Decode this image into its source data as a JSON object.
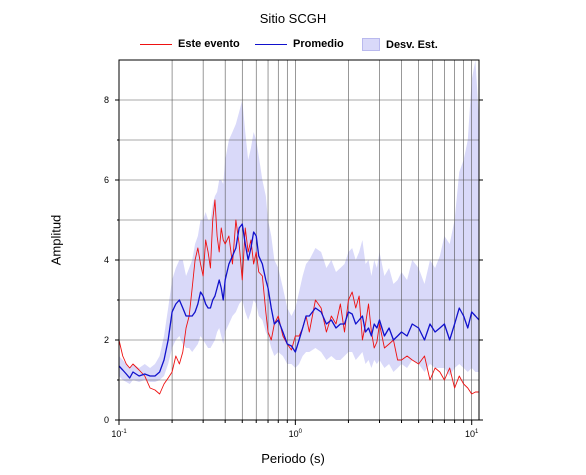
{
  "chart_data": {
    "type": "line",
    "title": "Sitio SCGH",
    "xlabel": "Periodo (s)",
    "ylabel": "Amplitud",
    "x_scale": "log",
    "xlim": [
      0.1,
      11
    ],
    "ylim": [
      0,
      9
    ],
    "grid": true,
    "legend_position": "top",
    "x_ticks": [
      {
        "value": 0.1,
        "base": "10",
        "exp": "-1"
      },
      {
        "value": 1,
        "base": "10",
        "exp": "0"
      },
      {
        "value": 10,
        "base": "10",
        "exp": "1"
      }
    ],
    "y_ticks": [
      0,
      2,
      4,
      6,
      8
    ],
    "series": [
      {
        "name": "Este evento",
        "color": "#ee1111",
        "x": [
          0.1,
          0.105,
          0.11,
          0.115,
          0.12,
          0.13,
          0.14,
          0.15,
          0.16,
          0.17,
          0.18,
          0.19,
          0.2,
          0.21,
          0.22,
          0.23,
          0.24,
          0.25,
          0.26,
          0.27,
          0.28,
          0.29,
          0.3,
          0.31,
          0.32,
          0.33,
          0.34,
          0.35,
          0.36,
          0.37,
          0.38,
          0.39,
          0.4,
          0.42,
          0.44,
          0.46,
          0.48,
          0.5,
          0.52,
          0.54,
          0.56,
          0.58,
          0.6,
          0.62,
          0.65,
          0.68,
          0.7,
          0.73,
          0.76,
          0.8,
          0.85,
          0.9,
          0.95,
          1.0,
          1.05,
          1.1,
          1.15,
          1.2,
          1.3,
          1.4,
          1.5,
          1.6,
          1.7,
          1.8,
          1.9,
          2.0,
          2.1,
          2.2,
          2.3,
          2.4,
          2.5,
          2.6,
          2.7,
          2.8,
          2.9,
          3.0,
          3.2,
          3.4,
          3.6,
          3.8,
          4.0,
          4.3,
          4.6,
          5.0,
          5.4,
          5.8,
          6.2,
          6.6,
          7.0,
          7.5,
          8.0,
          8.5,
          9.0,
          9.5,
          10.0,
          10.5,
          11.0
        ],
        "values": [
          2.0,
          1.6,
          1.4,
          1.3,
          1.4,
          1.25,
          1.1,
          0.8,
          0.75,
          0.65,
          0.9,
          1.05,
          1.2,
          1.6,
          1.4,
          1.7,
          2.3,
          2.6,
          3.3,
          4.0,
          4.3,
          3.9,
          3.6,
          4.5,
          4.2,
          3.8,
          5.0,
          5.5,
          4.6,
          4.2,
          4.8,
          4.5,
          4.4,
          4.6,
          3.9,
          5.0,
          4.4,
          3.5,
          4.8,
          4.2,
          4.5,
          3.9,
          4.2,
          3.7,
          3.6,
          2.7,
          2.2,
          2.0,
          2.4,
          2.6,
          2.1,
          1.9,
          1.75,
          2.1,
          2.1,
          2.3,
          2.6,
          2.2,
          3.0,
          2.8,
          2.2,
          2.6,
          2.4,
          2.9,
          2.2,
          3.0,
          3.2,
          2.8,
          3.1,
          2.0,
          2.4,
          2.9,
          2.2,
          1.8,
          1.95,
          2.4,
          1.8,
          1.9,
          2.0,
          1.5,
          1.5,
          1.6,
          1.5,
          1.4,
          1.6,
          1.0,
          1.3,
          1.2,
          1.0,
          1.3,
          0.8,
          1.1,
          0.9,
          0.8,
          0.65,
          0.7,
          0.7
        ]
      },
      {
        "name": "Promedio",
        "color": "#1111cc",
        "x": [
          0.1,
          0.105,
          0.11,
          0.115,
          0.12,
          0.13,
          0.14,
          0.15,
          0.16,
          0.17,
          0.18,
          0.19,
          0.2,
          0.21,
          0.22,
          0.23,
          0.24,
          0.25,
          0.26,
          0.27,
          0.28,
          0.29,
          0.3,
          0.31,
          0.32,
          0.33,
          0.34,
          0.35,
          0.36,
          0.37,
          0.38,
          0.39,
          0.4,
          0.42,
          0.44,
          0.46,
          0.48,
          0.5,
          0.52,
          0.54,
          0.56,
          0.58,
          0.6,
          0.62,
          0.65,
          0.68,
          0.7,
          0.73,
          0.76,
          0.8,
          0.85,
          0.9,
          0.95,
          1.0,
          1.05,
          1.1,
          1.15,
          1.2,
          1.3,
          1.4,
          1.5,
          1.6,
          1.7,
          1.8,
          1.9,
          2.0,
          2.1,
          2.2,
          2.3,
          2.4,
          2.5,
          2.6,
          2.7,
          2.8,
          2.9,
          3.0,
          3.2,
          3.4,
          3.6,
          3.8,
          4.0,
          4.3,
          4.6,
          5.0,
          5.4,
          5.8,
          6.2,
          6.6,
          7.0,
          7.5,
          8.0,
          8.5,
          9.0,
          9.5,
          10.0,
          10.5,
          11.0
        ],
        "values": [
          1.35,
          1.25,
          1.15,
          1.05,
          1.2,
          1.1,
          1.15,
          1.1,
          1.1,
          1.2,
          1.5,
          2.0,
          2.7,
          2.9,
          3.0,
          2.8,
          2.6,
          2.6,
          2.6,
          2.7,
          2.9,
          3.2,
          3.1,
          2.9,
          2.8,
          2.8,
          3.0,
          3.1,
          3.3,
          3.5,
          3.3,
          3.0,
          3.5,
          3.9,
          4.1,
          4.3,
          4.8,
          4.9,
          4.4,
          4.0,
          4.3,
          4.7,
          4.6,
          4.1,
          3.9,
          3.5,
          3.3,
          2.8,
          2.4,
          2.5,
          2.2,
          1.9,
          1.85,
          1.7,
          2.0,
          2.3,
          2.6,
          2.6,
          2.8,
          2.7,
          2.4,
          2.5,
          2.3,
          2.4,
          2.4,
          2.7,
          2.65,
          2.4,
          2.5,
          2.6,
          2.2,
          2.3,
          2.1,
          2.4,
          2.3,
          2.5,
          2.1,
          2.3,
          2.0,
          2.1,
          2.2,
          2.1,
          2.4,
          2.3,
          2.0,
          2.4,
          2.2,
          2.3,
          2.4,
          2.0,
          2.4,
          2.8,
          2.6,
          2.3,
          2.7,
          2.6,
          2.5
        ]
      },
      {
        "name": "Desv. Est.",
        "color": "#d9d9f9",
        "type": "band",
        "x": [
          0.1,
          0.105,
          0.11,
          0.115,
          0.12,
          0.13,
          0.14,
          0.15,
          0.16,
          0.17,
          0.18,
          0.19,
          0.2,
          0.21,
          0.22,
          0.23,
          0.24,
          0.25,
          0.26,
          0.27,
          0.28,
          0.29,
          0.3,
          0.31,
          0.32,
          0.33,
          0.34,
          0.35,
          0.36,
          0.37,
          0.38,
          0.39,
          0.4,
          0.42,
          0.44,
          0.46,
          0.48,
          0.5,
          0.52,
          0.54,
          0.56,
          0.58,
          0.6,
          0.62,
          0.65,
          0.68,
          0.7,
          0.73,
          0.76,
          0.8,
          0.85,
          0.9,
          0.95,
          1.0,
          1.05,
          1.1,
          1.15,
          1.2,
          1.3,
          1.4,
          1.5,
          1.6,
          1.7,
          1.8,
          1.9,
          2.0,
          2.1,
          2.2,
          2.3,
          2.4,
          2.5,
          2.6,
          2.7,
          2.8,
          2.9,
          3.0,
          3.2,
          3.4,
          3.6,
          3.8,
          4.0,
          4.3,
          4.6,
          5.0,
          5.4,
          5.8,
          6.2,
          6.6,
          7.0,
          7.5,
          8.0,
          8.5,
          9.0,
          9.5,
          10.0,
          10.5,
          11.0
        ],
        "upper": [
          1.6,
          1.5,
          1.4,
          1.3,
          1.4,
          1.3,
          1.4,
          1.3,
          1.4,
          1.6,
          2.1,
          2.8,
          3.5,
          3.8,
          4.0,
          4.0,
          3.6,
          3.8,
          4.0,
          4.4,
          4.6,
          5.0,
          5.0,
          5.2,
          5.0,
          5.0,
          5.4,
          5.6,
          5.7,
          6.0,
          6.0,
          5.9,
          6.5,
          7.0,
          7.2,
          7.4,
          7.7,
          8.0,
          7.2,
          6.5,
          6.8,
          7.2,
          7.0,
          6.6,
          6.0,
          5.6,
          5.0,
          4.6,
          4.0,
          3.8,
          3.3,
          2.8,
          2.6,
          2.8,
          3.2,
          3.6,
          3.9,
          4.0,
          4.3,
          4.2,
          3.8,
          4.0,
          3.7,
          3.8,
          3.9,
          4.2,
          4.3,
          4.0,
          4.2,
          4.5,
          3.9,
          4.0,
          3.6,
          4.0,
          3.8,
          4.2,
          3.6,
          3.8,
          3.4,
          3.5,
          3.7,
          3.5,
          4.0,
          3.8,
          3.4,
          4.0,
          3.8,
          4.1,
          4.6,
          4.4,
          5.0,
          6.2,
          6.5,
          7.0,
          8.5,
          9.0,
          7.5
        ],
        "lower": [
          1.1,
          1.0,
          0.95,
          0.9,
          1.0,
          0.95,
          1.0,
          0.95,
          0.95,
          1.0,
          1.1,
          1.4,
          1.8,
          2.0,
          2.1,
          1.9,
          1.8,
          1.8,
          1.7,
          1.8,
          1.9,
          2.1,
          2.0,
          1.9,
          1.8,
          1.8,
          1.9,
          2.0,
          2.2,
          2.3,
          2.1,
          1.9,
          2.2,
          2.4,
          2.6,
          2.7,
          2.9,
          3.0,
          2.7,
          2.5,
          2.7,
          3.0,
          2.9,
          2.6,
          2.5,
          2.2,
          2.1,
          1.8,
          1.6,
          1.7,
          1.6,
          1.4,
          1.4,
          1.3,
          1.4,
          1.6,
          1.7,
          1.7,
          1.8,
          1.7,
          1.5,
          1.6,
          1.5,
          1.5,
          1.6,
          1.7,
          1.7,
          1.5,
          1.6,
          1.7,
          1.4,
          1.5,
          1.3,
          1.5,
          1.4,
          1.5,
          1.3,
          1.4,
          1.2,
          1.3,
          1.4,
          1.3,
          1.5,
          1.4,
          1.2,
          1.4,
          1.3,
          1.3,
          1.3,
          1.1,
          1.3,
          1.4,
          1.3,
          1.2,
          1.3,
          1.2,
          1.2
        ]
      }
    ]
  }
}
